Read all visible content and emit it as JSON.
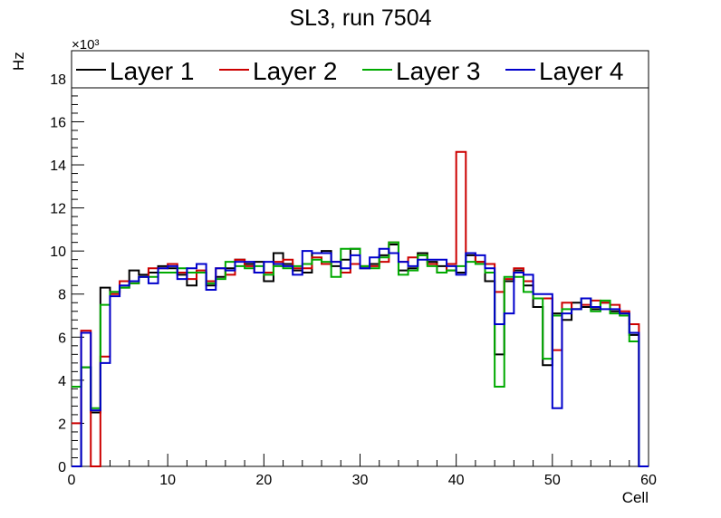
{
  "chart_data": {
    "type": "line",
    "title": "SL3, run 7504",
    "xlabel": "Cell",
    "ylabel": "Hz",
    "exponent_label": "×10³",
    "xlim": [
      0,
      60
    ],
    "ylim": [
      0,
      19.3
    ],
    "x_ticks": [
      0,
      10,
      20,
      30,
      40,
      50,
      60
    ],
    "y_ticks": [
      0,
      2,
      4,
      6,
      8,
      10,
      12,
      14,
      16,
      18
    ],
    "legend_position": "top",
    "bins": [
      0,
      1,
      2,
      3,
      4,
      5,
      6,
      7,
      8,
      9,
      10,
      11,
      12,
      13,
      14,
      15,
      16,
      17,
      18,
      19,
      20,
      21,
      22,
      23,
      24,
      25,
      26,
      27,
      28,
      29,
      30,
      31,
      32,
      33,
      34,
      35,
      36,
      37,
      38,
      39,
      40,
      41,
      42,
      43,
      44,
      45,
      46,
      47,
      48,
      49,
      50,
      51,
      52,
      53,
      54,
      55,
      56,
      57,
      58,
      59
    ],
    "series": [
      {
        "name": "Layer 1",
        "color": "#000000",
        "values": [
          0,
          4.6,
          2.5,
          8.3,
          8.1,
          8.3,
          9.1,
          8.9,
          9.0,
          9.3,
          9.2,
          8.9,
          8.4,
          9.0,
          8.4,
          8.8,
          9.2,
          9.6,
          9.4,
          9.5,
          8.6,
          9.9,
          9.4,
          9.1,
          9.0,
          9.9,
          10.0,
          9.3,
          9.6,
          10.1,
          9.2,
          9.4,
          9.8,
          10.3,
          9.1,
          9.2,
          9.9,
          9.5,
          9.3,
          9.1,
          9.0,
          9.8,
          9.5,
          8.6,
          5.2,
          8.6,
          9.1,
          8.4,
          7.4,
          4.7,
          7.1,
          6.8,
          7.6,
          7.4,
          7.3,
          7.6,
          7.2,
          7.1,
          6.1,
          0
        ]
      },
      {
        "name": "Layer 2",
        "color": "#cc0000",
        "values": [
          2.0,
          6.3,
          0,
          5.1,
          8.0,
          8.6,
          8.5,
          8.8,
          9.2,
          9.2,
          9.4,
          9.0,
          8.7,
          9.1,
          8.6,
          9.2,
          8.9,
          9.6,
          9.3,
          9.0,
          9.0,
          9.5,
          9.6,
          9.2,
          9.2,
          9.7,
          9.4,
          9.5,
          9.0,
          9.4,
          9.3,
          9.3,
          9.5,
          10.4,
          9.5,
          9.7,
          9.8,
          9.4,
          9.0,
          9.4,
          14.6,
          9.9,
          9.5,
          9.4,
          8.1,
          8.7,
          9.2,
          8.6,
          7.8,
          7.8,
          5.4,
          7.6,
          7.3,
          7.5,
          7.7,
          7.6,
          7.5,
          7.2,
          6.6,
          0
        ]
      },
      {
        "name": "Layer 3",
        "color": "#00aa00",
        "values": [
          3.7,
          4.6,
          2.7,
          7.5,
          8.1,
          8.3,
          8.5,
          8.8,
          8.8,
          9.0,
          9.0,
          9.2,
          9.0,
          9.0,
          8.5,
          8.7,
          9.5,
          9.3,
          9.2,
          9.3,
          8.9,
          9.3,
          9.2,
          9.3,
          9.4,
          9.6,
          9.5,
          8.8,
          10.1,
          10.1,
          9.3,
          9.2,
          9.7,
          10.4,
          8.9,
          9.1,
          9.8,
          9.3,
          9.0,
          9.1,
          9.3,
          9.5,
          9.4,
          9.0,
          3.7,
          8.8,
          8.8,
          8.1,
          7.8,
          5.0,
          7.0,
          7.3,
          7.3,
          7.8,
          7.2,
          7.7,
          7.1,
          7.0,
          5.8,
          0
        ]
      },
      {
        "name": "Layer 4",
        "color": "#0000cc",
        "values": [
          0,
          6.2,
          2.6,
          4.8,
          7.9,
          8.4,
          8.6,
          8.8,
          8.5,
          9.2,
          9.3,
          8.7,
          9.2,
          9.4,
          8.2,
          9.2,
          9.1,
          9.5,
          9.5,
          9.0,
          9.5,
          9.4,
          9.3,
          8.9,
          10.0,
          9.9,
          9.9,
          9.5,
          9.2,
          9.8,
          9.2,
          9.7,
          10.1,
          9.9,
          9.5,
          9.3,
          9.6,
          9.6,
          9.6,
          9.3,
          8.9,
          9.9,
          9.8,
          9.2,
          6.6,
          7.1,
          9.0,
          8.9,
          8.0,
          8.0,
          2.7,
          7.1,
          7.3,
          7.8,
          7.4,
          7.3,
          7.3,
          7.1,
          6.2,
          0
        ]
      }
    ]
  }
}
